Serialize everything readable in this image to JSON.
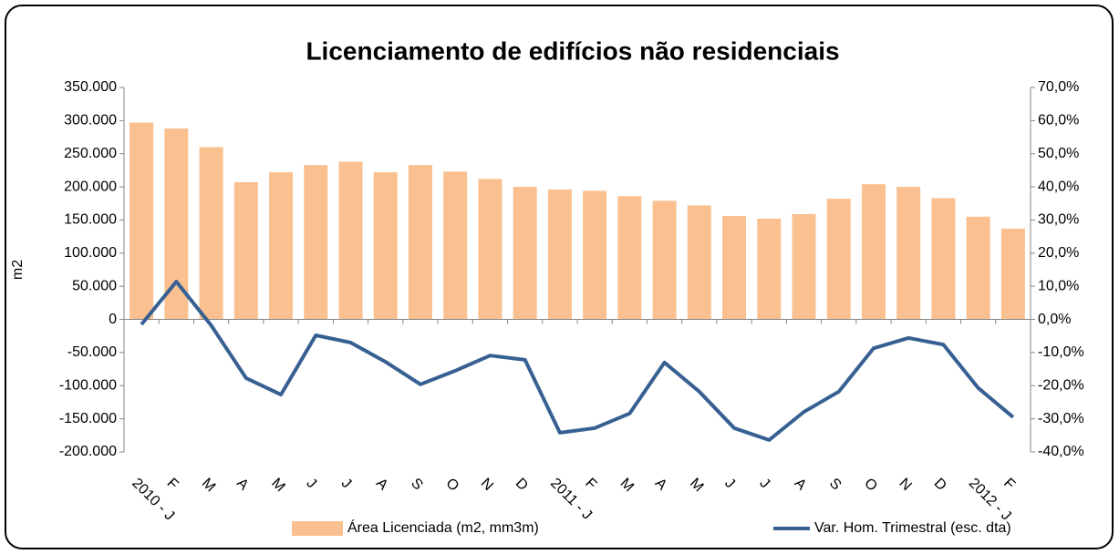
{
  "chart_data": {
    "type": "bar_line",
    "title": "Licenciamento de edifícios não residenciais",
    "y_label": "m2",
    "categories": [
      "2010 - J",
      "F",
      "M",
      "A",
      "M",
      "J",
      "J",
      "A",
      "S",
      "O",
      "N",
      "D",
      "2011 - J",
      "F",
      "M",
      "A",
      "M",
      "J",
      "J",
      "A",
      "S",
      "O",
      "N",
      "D",
      "2012 - J",
      "F"
    ],
    "series": [
      {
        "name": "Área Licenciada (m2, mm3m)",
        "type": "bar",
        "axis": "y",
        "color": "#fac090",
        "values": [
          297000,
          288000,
          260000,
          207000,
          222000,
          233000,
          238000,
          222000,
          233000,
          223000,
          212000,
          200000,
          196000,
          194000,
          186000,
          179000,
          172000,
          156000,
          152000,
          159000,
          182000,
          204000,
          200000,
          183000,
          155000,
          137000
        ]
      },
      {
        "name": "Var. Hom. Trimestral (esc. dta)",
        "type": "line",
        "axis": "y2",
        "color": "#376092",
        "values": [
          -1.5,
          11.4,
          -1.8,
          -17.7,
          -22.7,
          -4.8,
          -7,
          -12.8,
          -19.6,
          -15.5,
          -10.9,
          -12.2,
          -34.2,
          -32.8,
          -28.4,
          -13,
          -21.8,
          -32.8,
          -36.4,
          -27.9,
          -21.8,
          -8.7,
          -5.6,
          -7.6,
          -20.7,
          -29.5
        ]
      }
    ],
    "ylim": [
      -200000,
      350000
    ],
    "yticks": [
      {
        "value": -200000,
        "label": "-200.000"
      },
      {
        "value": -150000,
        "label": "-150.000"
      },
      {
        "value": -100000,
        "label": "-100.000"
      },
      {
        "value": -50000,
        "label": "-50.000"
      },
      0,
      {
        "value": 50000,
        "label": "50.000"
      },
      {
        "value": 100000,
        "label": "100.000"
      },
      {
        "value": 150000,
        "label": "150.000"
      },
      {
        "value": 200000,
        "label": "200.000"
      },
      {
        "value": 250000,
        "label": "250.000"
      },
      {
        "value": 300000,
        "label": "300.000"
      },
      {
        "value": 350000,
        "label": "350.000"
      }
    ],
    "y2lim": [
      -40,
      70
    ],
    "y2ticks": [
      {
        "value": -40,
        "label": "-40,0%"
      },
      {
        "value": -30,
        "label": "-30,0%"
      },
      {
        "value": -20,
        "label": "-20,0%"
      },
      {
        "value": -10,
        "label": "-10,0%"
      },
      {
        "value": 0,
        "label": "0,0%"
      },
      {
        "value": 10,
        "label": "10,0%"
      },
      {
        "value": 20,
        "label": "20,0%"
      },
      {
        "value": 30,
        "label": "30,0%"
      },
      {
        "value": 40,
        "label": "40,0%"
      },
      {
        "value": 50,
        "label": "50,0%"
      },
      {
        "value": 60,
        "label": "60,0%"
      },
      {
        "value": 70,
        "label": "70,0%"
      }
    ],
    "legend": "bottom"
  }
}
